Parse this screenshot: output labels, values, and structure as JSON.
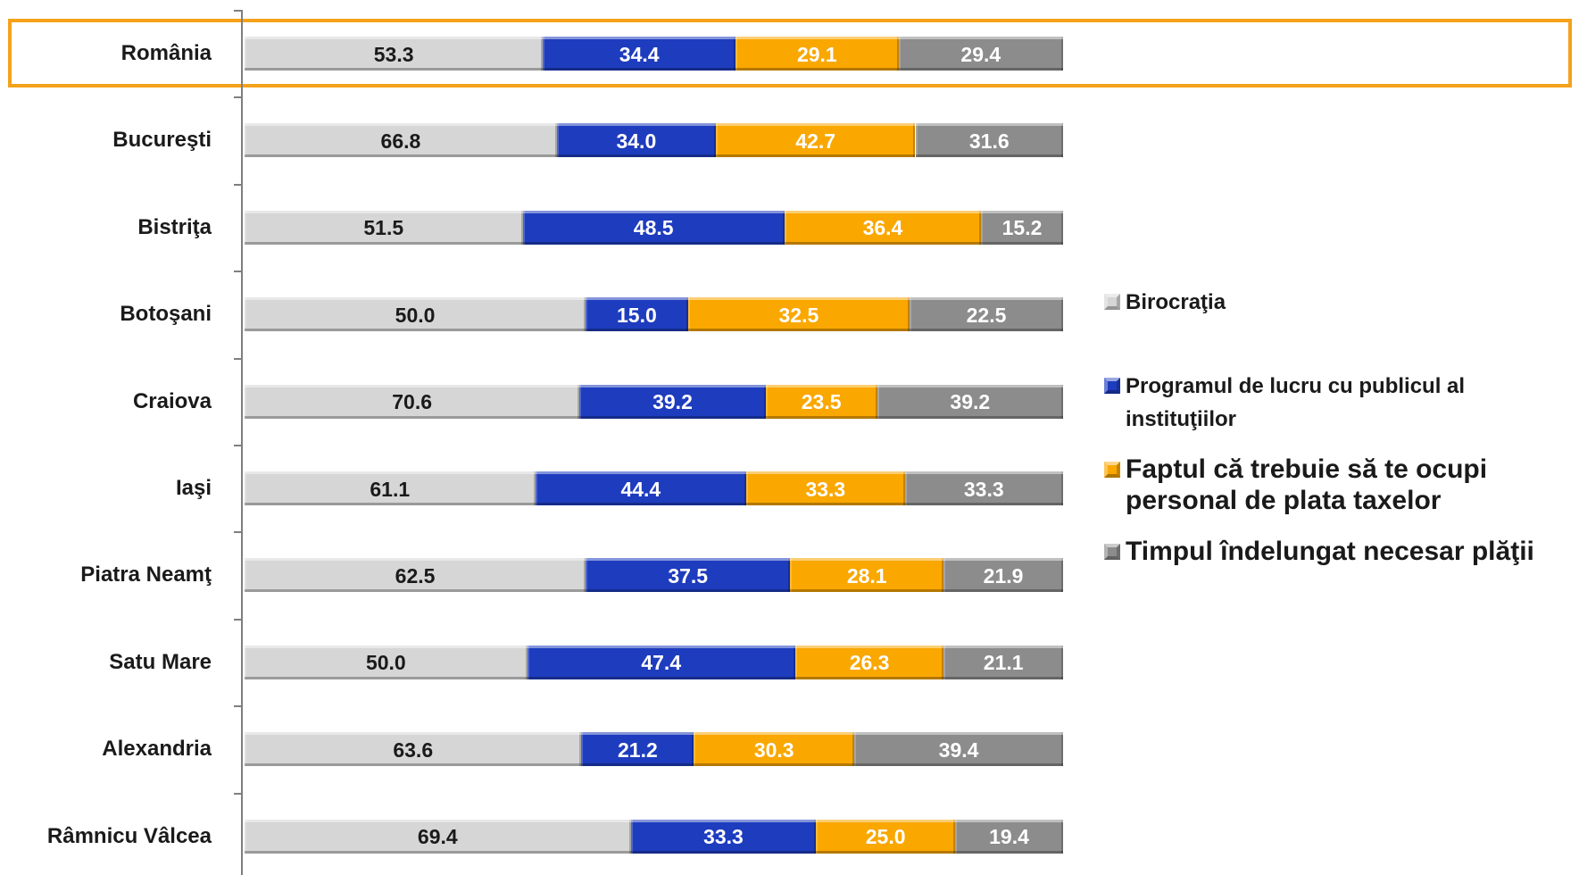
{
  "chart_data": {
    "type": "bar",
    "orientation": "horizontal",
    "stacking": "percent",
    "categories": [
      "România",
      "Bucureşti",
      "Bistriţa",
      "Botoşani",
      "Craiova",
      "Iaşi",
      "Piatra Neamţ",
      "Satu Mare",
      "Alexandria",
      "Râmnicu Vâlcea"
    ],
    "series": [
      {
        "name": "Birocraţia",
        "values": [
          53.3,
          66.8,
          51.5,
          50.0,
          70.6,
          61.1,
          62.5,
          50.0,
          63.6,
          69.4
        ],
        "color": "#D6D6D6",
        "label_color": "#1A1A1A"
      },
      {
        "name": "Programul de lucru cu publicul al instituţiilor",
        "values": [
          34.4,
          34.0,
          48.5,
          15.0,
          39.2,
          44.4,
          37.5,
          47.4,
          21.2,
          33.3
        ],
        "color": "#1E3CBE",
        "label_color": "#FFFFFF"
      },
      {
        "name": "Faptul că trebuie să te ocupi personal de plata taxelor",
        "values": [
          29.1,
          42.7,
          36.4,
          32.5,
          23.5,
          33.3,
          28.1,
          26.3,
          30.3,
          25.0
        ],
        "color": "#FAA700",
        "label_color": "#FFFFFF"
      },
      {
        "name": "Timpul îndelungat necesar plăţii",
        "values": [
          29.4,
          31.6,
          15.2,
          22.5,
          39.2,
          33.3,
          21.9,
          21.1,
          39.4,
          19.4
        ],
        "color": "#8C8C8C",
        "label_color": "#FFFFFF"
      }
    ],
    "data_labels": true,
    "legend": "right",
    "grid": false,
    "highlight": {
      "category_index": 0,
      "color": "#F5A21B"
    }
  }
}
